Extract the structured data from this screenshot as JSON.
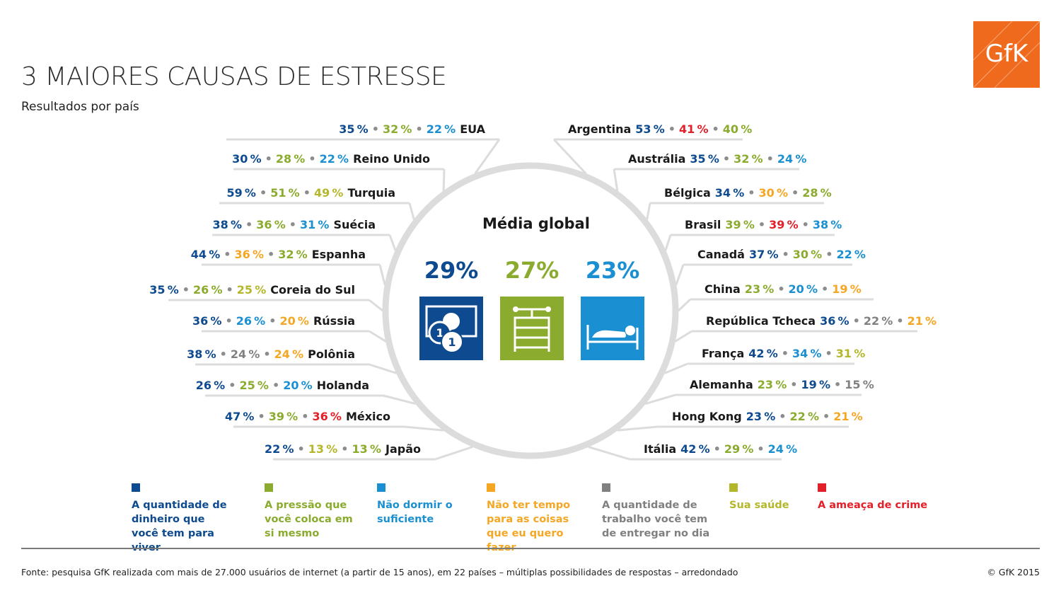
{
  "header": {
    "title": "3 MAIORES CAUSAS DE ESTRESSE",
    "subtitle": "Resultados por país",
    "logo_text": "GfK",
    "logo_color": "#ef6a1c"
  },
  "colors": {
    "money": "#0d4a8f",
    "pressure": "#8aab2d",
    "sleep": "#1a8fd1",
    "time": "#f5a623",
    "work": "#808080",
    "health": "#b5b72b",
    "crime": "#e2202a",
    "separator": "#8c8c8c",
    "lines": "#dcdcdc"
  },
  "chart_data": {
    "type": "table",
    "title": "3 MAIORES CAUSAS DE ESTRESSE",
    "subtitle": "Resultados por país",
    "global_average": {
      "title": "Média global",
      "items": [
        {
          "value": "29%",
          "category": "money",
          "icon": "money-icon"
        },
        {
          "value": "27%",
          "category": "pressure",
          "icon": "pressure-icon"
        },
        {
          "value": "23%",
          "category": "sleep",
          "icon": "sleep-icon"
        }
      ]
    },
    "countries": [
      {
        "name": "EUA",
        "side": "left",
        "values": [
          {
            "v": "35%",
            "c": "money"
          },
          {
            "v": "32%",
            "c": "pressure"
          },
          {
            "v": "22%",
            "c": "sleep"
          }
        ]
      },
      {
        "name": "Reino Unido",
        "side": "left",
        "values": [
          {
            "v": "30%",
            "c": "money"
          },
          {
            "v": "28%",
            "c": "pressure"
          },
          {
            "v": "22%",
            "c": "sleep"
          }
        ]
      },
      {
        "name": "Turquia",
        "side": "left",
        "values": [
          {
            "v": "59%",
            "c": "money"
          },
          {
            "v": "51%",
            "c": "pressure"
          },
          {
            "v": "49%",
            "c": "health"
          }
        ]
      },
      {
        "name": "Suécia",
        "side": "left",
        "values": [
          {
            "v": "38%",
            "c": "money"
          },
          {
            "v": "36%",
            "c": "pressure"
          },
          {
            "v": "31%",
            "c": "sleep"
          }
        ]
      },
      {
        "name": "Espanha",
        "side": "left",
        "values": [
          {
            "v": "44%",
            "c": "money"
          },
          {
            "v": "36%",
            "c": "time"
          },
          {
            "v": "32%",
            "c": "pressure"
          }
        ]
      },
      {
        "name": "Coreia do Sul",
        "side": "left",
        "values": [
          {
            "v": "35%",
            "c": "money"
          },
          {
            "v": "26%",
            "c": "pressure"
          },
          {
            "v": "25%",
            "c": "health"
          }
        ]
      },
      {
        "name": "Rússia",
        "side": "left",
        "values": [
          {
            "v": "36%",
            "c": "money"
          },
          {
            "v": "26%",
            "c": "sleep"
          },
          {
            "v": "20%",
            "c": "time"
          }
        ]
      },
      {
        "name": "Polônia",
        "side": "left",
        "values": [
          {
            "v": "38%",
            "c": "money"
          },
          {
            "v": "24%",
            "c": "work"
          },
          {
            "v": "24%",
            "c": "time"
          }
        ]
      },
      {
        "name": "Holanda",
        "side": "left",
        "values": [
          {
            "v": "26%",
            "c": "money"
          },
          {
            "v": "25%",
            "c": "pressure"
          },
          {
            "v": "20%",
            "c": "sleep"
          }
        ]
      },
      {
        "name": "México",
        "side": "left",
        "values": [
          {
            "v": "47%",
            "c": "money"
          },
          {
            "v": "39%",
            "c": "pressure"
          },
          {
            "v": "36%",
            "c": "crime"
          }
        ]
      },
      {
        "name": "Japão",
        "side": "left",
        "values": [
          {
            "v": "22%",
            "c": "money"
          },
          {
            "v": "13%",
            "c": "health"
          },
          {
            "v": "13%",
            "c": "pressure"
          }
        ]
      },
      {
        "name": "Argentina",
        "side": "right",
        "values": [
          {
            "v": "53%",
            "c": "money"
          },
          {
            "v": "41%",
            "c": "crime"
          },
          {
            "v": "40%",
            "c": "pressure"
          }
        ]
      },
      {
        "name": "Austrália",
        "side": "right",
        "values": [
          {
            "v": "35%",
            "c": "money"
          },
          {
            "v": "32%",
            "c": "pressure"
          },
          {
            "v": "24%",
            "c": "sleep"
          }
        ]
      },
      {
        "name": "Bélgica",
        "side": "right",
        "values": [
          {
            "v": "34%",
            "c": "money"
          },
          {
            "v": "30%",
            "c": "time"
          },
          {
            "v": "28%",
            "c": "pressure"
          }
        ]
      },
      {
        "name": "Brasil",
        "side": "right",
        "values": [
          {
            "v": "39%",
            "c": "pressure"
          },
          {
            "v": "39%",
            "c": "crime"
          },
          {
            "v": "38%",
            "c": "sleep"
          }
        ]
      },
      {
        "name": "Canadá",
        "side": "right",
        "values": [
          {
            "v": "37%",
            "c": "money"
          },
          {
            "v": "30%",
            "c": "pressure"
          },
          {
            "v": "22%",
            "c": "sleep"
          }
        ]
      },
      {
        "name": "China",
        "side": "right",
        "values": [
          {
            "v": "23%",
            "c": "pressure"
          },
          {
            "v": "20%",
            "c": "sleep"
          },
          {
            "v": "19%",
            "c": "time"
          }
        ]
      },
      {
        "name": "República Tcheca",
        "side": "right",
        "values": [
          {
            "v": "36%",
            "c": "money"
          },
          {
            "v": "22%",
            "c": "work"
          },
          {
            "v": "21%",
            "c": "time"
          }
        ]
      },
      {
        "name": "França",
        "side": "right",
        "values": [
          {
            "v": "42%",
            "c": "money"
          },
          {
            "v": "34%",
            "c": "sleep"
          },
          {
            "v": "31%",
            "c": "health"
          }
        ]
      },
      {
        "name": "Alemanha",
        "side": "right",
        "values": [
          {
            "v": "23%",
            "c": "pressure"
          },
          {
            "v": "19%",
            "c": "money"
          },
          {
            "v": "15%",
            "c": "work"
          }
        ]
      },
      {
        "name": "Hong Kong",
        "side": "right",
        "values": [
          {
            "v": "23%",
            "c": "money"
          },
          {
            "v": "22%",
            "c": "pressure"
          },
          {
            "v": "21%",
            "c": "time"
          }
        ]
      },
      {
        "name": "Itália",
        "side": "right",
        "values": [
          {
            "v": "42%",
            "c": "money"
          },
          {
            "v": "29%",
            "c": "pressure"
          },
          {
            "v": "24%",
            "c": "sleep"
          }
        ]
      }
    ]
  },
  "legend": [
    {
      "key": "money",
      "label": "A quantidade de dinheiro que você tem para viver"
    },
    {
      "key": "pressure",
      "label": "A pressão que você coloca em si mesmo"
    },
    {
      "key": "sleep",
      "label": "Não dormir o suficiente"
    },
    {
      "key": "time",
      "label": "Não ter tempo para as coisas que eu quero fazer"
    },
    {
      "key": "work",
      "label": "A quantidade de trabalho você tem de entregar no dia"
    },
    {
      "key": "health",
      "label": "Sua saúde"
    },
    {
      "key": "crime",
      "label": "A ameaça de crime"
    }
  ],
  "footer": {
    "source": "Fonte: pesquisa GfK realizada com mais de 27.000 usuários de internet (a partir de 15 anos), em 22 países – múltiplas possibilidades de respostas – arredondado",
    "copyright": "© GfK 2015"
  }
}
